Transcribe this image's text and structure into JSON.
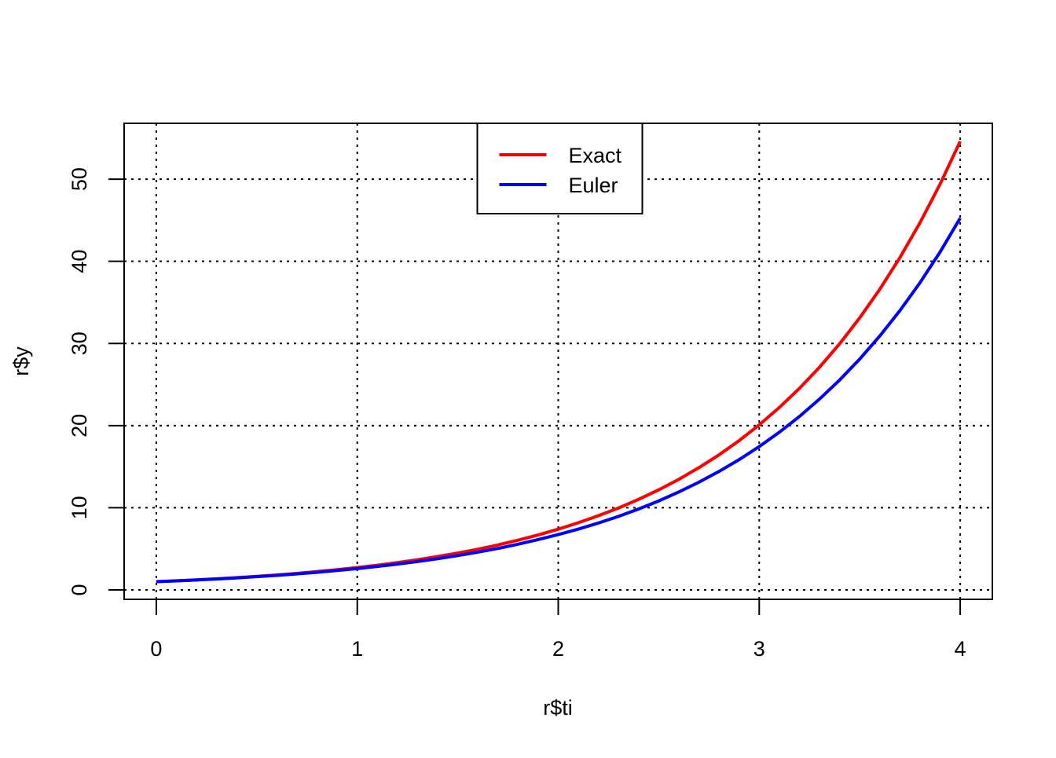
{
  "chart_data": {
    "type": "line",
    "x_label": "r$ti",
    "y_label": "r$y",
    "x": [
      0,
      0.1,
      0.2,
      0.3,
      0.4,
      0.5,
      0.6,
      0.7,
      0.8,
      0.9,
      1,
      1.1,
      1.2,
      1.3,
      1.4,
      1.5,
      1.6,
      1.7,
      1.8,
      1.9,
      2,
      2.1,
      2.2,
      2.3,
      2.4,
      2.5,
      2.6,
      2.7,
      2.8,
      2.9,
      3,
      3.1,
      3.2,
      3.3,
      3.4,
      3.5,
      3.6,
      3.7,
      3.8,
      3.9,
      4
    ],
    "series": [
      {
        "name": "Exact",
        "color": "#ff0000",
        "values": [
          1,
          1.11,
          1.22,
          1.35,
          1.49,
          1.65,
          1.82,
          2.01,
          2.23,
          2.46,
          2.72,
          3,
          3.32,
          3.67,
          4.06,
          4.48,
          4.95,
          5.47,
          6.05,
          6.69,
          7.39,
          8.17,
          9.03,
          9.97,
          11.02,
          12.18,
          13.46,
          14.88,
          16.44,
          18.17,
          20.09,
          22.2,
          24.53,
          27.11,
          29.96,
          33.12,
          36.6,
          40.45,
          44.7,
          49.4,
          54.6
        ]
      },
      {
        "name": "Euler",
        "color": "#0000ff",
        "values": [
          1,
          1.1,
          1.21,
          1.33,
          1.46,
          1.61,
          1.77,
          1.95,
          2.14,
          2.36,
          2.59,
          2.85,
          3.14,
          3.45,
          3.8,
          4.18,
          4.6,
          5.05,
          5.56,
          6.12,
          6.73,
          7.4,
          8.14,
          8.95,
          9.85,
          10.83,
          11.92,
          13.11,
          14.42,
          15.86,
          17.45,
          19.19,
          21.11,
          23.23,
          25.55,
          28.1,
          30.91,
          34,
          37.4,
          41.14,
          45.26
        ]
      }
    ],
    "xlim": [
      -0.16,
      4.16
    ],
    "ylim": [
      -1.15,
      56.8
    ],
    "xticks": [
      0,
      1,
      2,
      3,
      4
    ],
    "yticks": [
      0,
      10,
      20,
      30,
      40,
      50
    ],
    "grid": true,
    "legend": "top"
  }
}
